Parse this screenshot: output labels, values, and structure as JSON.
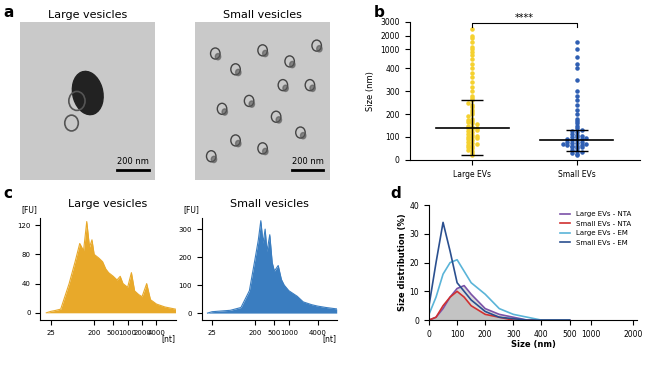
{
  "chart_data": [
    {
      "panel": "a",
      "type": "image",
      "title": "Large vesicles",
      "annotations": [
        "200 nm"
      ]
    },
    {
      "type": "image",
      "title": "Small vesicles",
      "annotations": [
        "200 nm"
      ]
    },
    {
      "panel": "b",
      "type": "scatter",
      "categories": [
        "Large EVs",
        "Small EVs"
      ],
      "values": [
        [
          20,
          30,
          40,
          45,
          50,
          55,
          60,
          65,
          70,
          75,
          80,
          85,
          90,
          95,
          100,
          100,
          105,
          110,
          115,
          120,
          125,
          130,
          135,
          140,
          140,
          145,
          150,
          155,
          160,
          165,
          170,
          175,
          180,
          190,
          200,
          210,
          220,
          230,
          240,
          250,
          260,
          270,
          280,
          300,
          320,
          340,
          360,
          380,
          400,
          420,
          440,
          600,
          800,
          1000,
          1200,
          1500,
          1800,
          2000,
          2500
        ],
        [
          20,
          25,
          30,
          35,
          40,
          45,
          50,
          55,
          55,
          60,
          60,
          65,
          65,
          70,
          70,
          75,
          75,
          80,
          80,
          85,
          85,
          90,
          90,
          95,
          100,
          100,
          105,
          110,
          115,
          120,
          125,
          130,
          140,
          150,
          160,
          170,
          180,
          200,
          220,
          240,
          260,
          280,
          300,
          350,
          400,
          420,
          450,
          1000,
          1500
        ]
      ],
      "colors": [
        "#f5d130",
        "#2f5fb3"
      ],
      "mean": [
        140,
        85
      ],
      "error": [
        120,
        45
      ],
      "ylabel": "Size (nm)",
      "ylim": [
        0,
        3000
      ],
      "yticks": [
        0,
        100,
        200,
        300,
        400,
        1000,
        2000,
        3000
      ],
      "annotations": [
        "****"
      ]
    },
    {
      "panel": "c",
      "type": "area",
      "title": "Large vesicles",
      "xlabel": "[nt]",
      "ylabel": "[FU]",
      "x": [
        20,
        25,
        30,
        40,
        60,
        80,
        100,
        120,
        140,
        160,
        180,
        200,
        250,
        300,
        350,
        400,
        500,
        600,
        700,
        800,
        1000,
        1200,
        1400,
        1700,
        2000,
        2500,
        3000,
        4000,
        6000,
        10000
      ],
      "values": [
        0,
        2,
        3,
        5,
        40,
        70,
        95,
        85,
        125,
        90,
        100,
        80,
        75,
        70,
        60,
        55,
        50,
        45,
        50,
        40,
        35,
        55,
        30,
        25,
        22,
        40,
        18,
        12,
        8,
        5
      ],
      "color": "#e8a92a",
      "log": "x",
      "xlim": [
        15,
        10000
      ],
      "xticks": [
        25,
        200,
        500,
        1000,
        2000,
        4000
      ],
      "ylim": [
        -10,
        130
      ],
      "yticks": [
        0,
        40,
        80,
        120
      ]
    },
    {
      "type": "area",
      "title": "Small vesicles",
      "xlabel": "[nt]",
      "ylabel": "[FU]",
      "x": [
        20,
        25,
        60,
        100,
        150,
        200,
        230,
        260,
        290,
        320,
        350,
        400,
        450,
        500,
        600,
        700,
        800,
        1000,
        1500,
        2000,
        3000,
        4000,
        6000,
        10000
      ],
      "values": [
        0,
        5,
        10,
        20,
        80,
        200,
        260,
        330,
        250,
        300,
        220,
        280,
        180,
        150,
        170,
        120,
        100,
        80,
        60,
        40,
        30,
        25,
        20,
        15
      ],
      "color": "#3a7dc0",
      "log": "x",
      "xlim": [
        15,
        10000
      ],
      "xticks": [
        25,
        200,
        500,
        1000,
        4000
      ],
      "ylim": [
        -25,
        340
      ],
      "yticks": [
        0,
        100,
        200,
        300
      ]
    },
    {
      "panel": "d",
      "type": "line",
      "xlabel": "Size (nm)",
      "ylabel": "Size distribution (%)",
      "x": [
        0,
        25,
        50,
        75,
        100,
        125,
        150,
        200,
        250,
        300,
        350,
        400,
        500
      ],
      "series": [
        {
          "name": "Large EVs - NTA",
          "color": "#7b52a8",
          "type": "area",
          "values": [
            0,
            1,
            4,
            8,
            11,
            12,
            9,
            4,
            2,
            1,
            0,
            0,
            0
          ]
        },
        {
          "name": "Small EVs - NTA",
          "color": "#d03030",
          "type": "area",
          "values": [
            0,
            1,
            5,
            8,
            10,
            8,
            5,
            2,
            1,
            0,
            0,
            0,
            0
          ]
        },
        {
          "name": "Large EVs - EM",
          "color": "#5ab4d8",
          "type": "line",
          "values": [
            2,
            8,
            16,
            20,
            21,
            17,
            13,
            9,
            4,
            2,
            1,
            0,
            0
          ]
        },
        {
          "name": "Small EVs - EM",
          "color": "#2a4f8f",
          "type": "line",
          "values": [
            5,
            20,
            34,
            24,
            13,
            10,
            7,
            3,
            1,
            0.5,
            0,
            0,
            0
          ]
        }
      ],
      "xlim": [
        0,
        2100
      ],
      "xticks": [
        0,
        100,
        200,
        300,
        400,
        500,
        1000,
        2000
      ],
      "ylim": [
        0,
        40
      ],
      "yticks": [
        0,
        10,
        20,
        30,
        40
      ],
      "legend": "upper right"
    }
  ]
}
